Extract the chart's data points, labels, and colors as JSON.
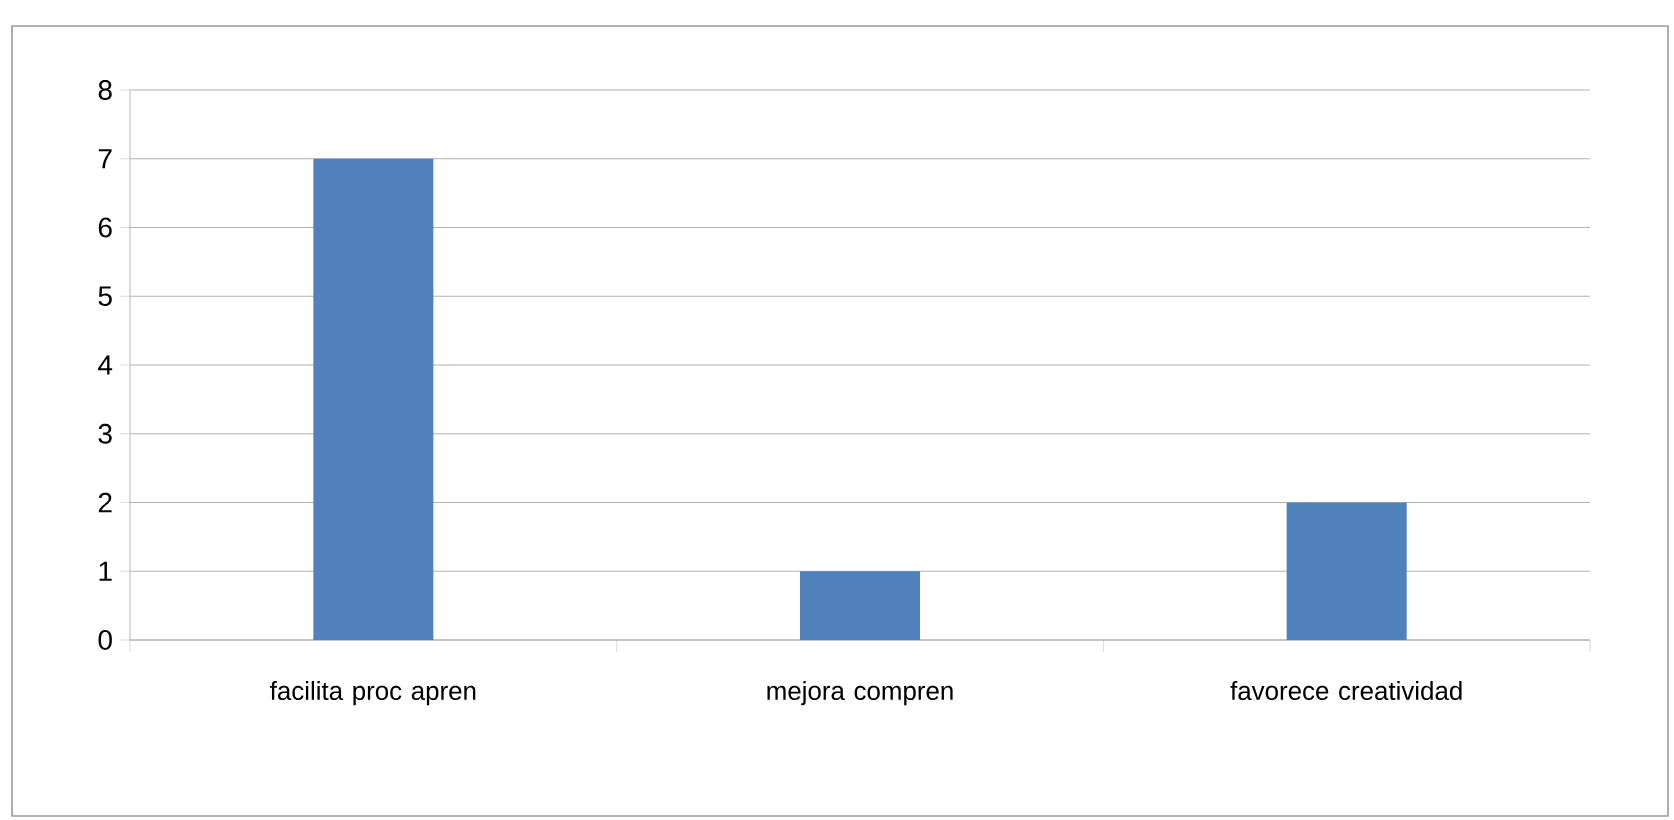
{
  "chart_data": {
    "type": "bar",
    "categories": [
      "facilita proc apren",
      "mejora compren",
      "favorece creatividad"
    ],
    "values": [
      7,
      1,
      2
    ],
    "color": "#4f81bd",
    "ylim": [
      0,
      8
    ],
    "yticks": [
      0,
      1,
      2,
      3,
      4,
      5,
      6,
      7,
      8
    ],
    "grid": "y"
  }
}
